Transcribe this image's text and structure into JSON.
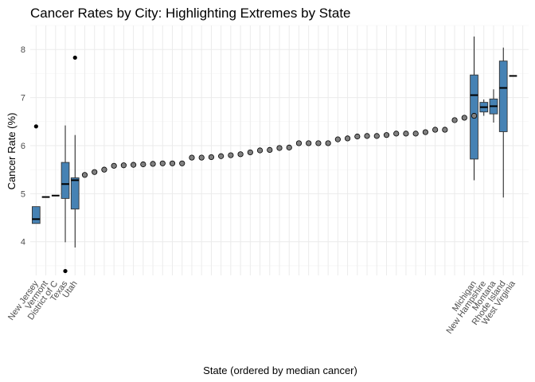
{
  "chart_data": {
    "type": "boxplot+scatter",
    "title": "Cancer Rates by City: Highlighting Extremes by State",
    "xlabel": "State (ordered by median cancer)",
    "ylabel": "Cancer Rate (%)",
    "ylim": [
      3.3,
      8.5
    ],
    "y_ticks": [
      4,
      5,
      6,
      7,
      8
    ],
    "grid": true,
    "box_fill": "#4682b4",
    "point_fill": "#808080",
    "n_categories": 51,
    "labeled_states": [
      {
        "pos": 1,
        "label": "New Jersey"
      },
      {
        "pos": 2,
        "label": "Vermont"
      },
      {
        "pos": 3,
        "label": "District of C"
      },
      {
        "pos": 4,
        "label": "Texas"
      },
      {
        "pos": 5,
        "label": "Utah"
      },
      {
        "pos": 46,
        "label": "Michigan"
      },
      {
        "pos": 47,
        "label": "New Hampshire"
      },
      {
        "pos": 48,
        "label": "Montana"
      },
      {
        "pos": 49,
        "label": "Rhode Island"
      },
      {
        "pos": 50,
        "label": "West Virginia"
      }
    ],
    "boxes": [
      {
        "pos": 1,
        "min": 4.38,
        "q1": 4.38,
        "median": 4.47,
        "q3": 4.73,
        "max": 4.73,
        "outliers": [
          6.4
        ]
      },
      {
        "pos": 2,
        "min": 4.93,
        "q1": 4.93,
        "median": 4.93,
        "q3": 4.93,
        "max": 4.93,
        "outliers": []
      },
      {
        "pos": 3,
        "min": 4.96,
        "q1": 4.96,
        "median": 4.96,
        "q3": 4.96,
        "max": 4.96,
        "outliers": []
      },
      {
        "pos": 4,
        "min": 3.99,
        "q1": 4.9,
        "median": 5.2,
        "q3": 5.65,
        "max": 6.42,
        "outliers": [
          3.39
        ]
      },
      {
        "pos": 5,
        "min": 3.88,
        "q1": 4.68,
        "median": 5.28,
        "q3": 5.33,
        "max": 6.22,
        "outliers": [
          7.83
        ]
      },
      {
        "pos": 46,
        "min": 5.28,
        "q1": 5.72,
        "median": 7.05,
        "q3": 7.47,
        "max": 8.27,
        "outliers": []
      },
      {
        "pos": 47,
        "min": 6.62,
        "q1": 6.7,
        "median": 6.8,
        "q3": 6.9,
        "max": 6.96,
        "outliers": []
      },
      {
        "pos": 48,
        "min": 6.48,
        "q1": 6.66,
        "median": 6.82,
        "q3": 6.97,
        "max": 7.17,
        "outliers": []
      },
      {
        "pos": 49,
        "min": 4.92,
        "q1": 6.29,
        "median": 7.2,
        "q3": 7.76,
        "max": 8.04,
        "outliers": []
      },
      {
        "pos": 50,
        "min": 7.45,
        "q1": 7.45,
        "median": 7.45,
        "q3": 7.45,
        "max": 7.45,
        "outliers": []
      }
    ],
    "points": [
      {
        "pos": 6,
        "y": 5.39
      },
      {
        "pos": 7,
        "y": 5.45
      },
      {
        "pos": 8,
        "y": 5.5
      },
      {
        "pos": 9,
        "y": 5.58
      },
      {
        "pos": 10,
        "y": 5.59
      },
      {
        "pos": 11,
        "y": 5.6
      },
      {
        "pos": 12,
        "y": 5.61
      },
      {
        "pos": 13,
        "y": 5.62
      },
      {
        "pos": 14,
        "y": 5.63
      },
      {
        "pos": 15,
        "y": 5.63
      },
      {
        "pos": 16,
        "y": 5.63
      },
      {
        "pos": 17,
        "y": 5.75
      },
      {
        "pos": 18,
        "y": 5.75
      },
      {
        "pos": 19,
        "y": 5.76
      },
      {
        "pos": 20,
        "y": 5.78
      },
      {
        "pos": 21,
        "y": 5.8
      },
      {
        "pos": 22,
        "y": 5.82
      },
      {
        "pos": 23,
        "y": 5.86
      },
      {
        "pos": 24,
        "y": 5.9
      },
      {
        "pos": 25,
        "y": 5.91
      },
      {
        "pos": 26,
        "y": 5.95
      },
      {
        "pos": 27,
        "y": 5.96
      },
      {
        "pos": 28,
        "y": 6.05
      },
      {
        "pos": 29,
        "y": 6.05
      },
      {
        "pos": 30,
        "y": 6.05
      },
      {
        "pos": 31,
        "y": 6.05
      },
      {
        "pos": 32,
        "y": 6.13
      },
      {
        "pos": 33,
        "y": 6.15
      },
      {
        "pos": 34,
        "y": 6.19
      },
      {
        "pos": 35,
        "y": 6.2
      },
      {
        "pos": 36,
        "y": 6.2
      },
      {
        "pos": 37,
        "y": 6.22
      },
      {
        "pos": 38,
        "y": 6.25
      },
      {
        "pos": 39,
        "y": 6.25
      },
      {
        "pos": 40,
        "y": 6.25
      },
      {
        "pos": 41,
        "y": 6.28
      },
      {
        "pos": 42,
        "y": 6.33
      },
      {
        "pos": 43,
        "y": 6.33
      },
      {
        "pos": 44,
        "y": 6.53
      },
      {
        "pos": 45,
        "y": 6.58
      },
      {
        "pos": 46,
        "y": 6.62
      }
    ]
  }
}
